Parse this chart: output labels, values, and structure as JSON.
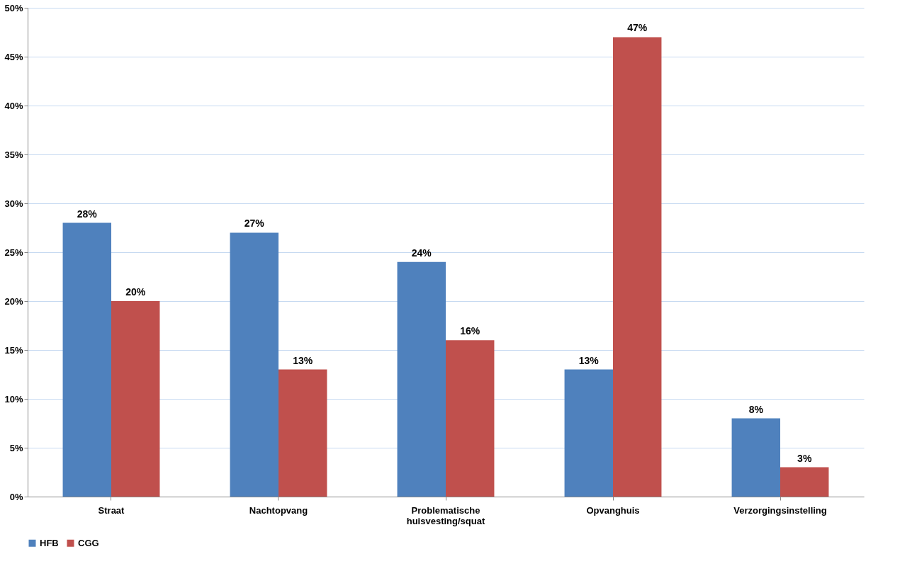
{
  "chart_data": {
    "type": "bar",
    "categories": [
      "Straat",
      "Nachtopvang",
      "Problematische huisvesting/squat",
      "Opvanghuis",
      "Verzorgingsinstelling"
    ],
    "series": [
      {
        "name": "HFB",
        "color": "#4f81bd",
        "values": [
          28,
          27,
          24,
          13,
          8
        ],
        "value_labels": [
          "28%",
          "27%",
          "24%",
          "13%",
          "8%"
        ]
      },
      {
        "name": "CGG",
        "color": "#c0504d",
        "values": [
          20,
          13,
          16,
          47,
          3
        ],
        "value_labels": [
          "20%",
          "13%",
          "16%",
          "47%",
          "3%"
        ]
      }
    ],
    "ylim": [
      0,
      50
    ],
    "yticks": [
      {
        "value": 0,
        "label": "0%"
      },
      {
        "value": 5,
        "label": "5%"
      },
      {
        "value": 10,
        "label": "10%"
      },
      {
        "value": 15,
        "label": "15%"
      },
      {
        "value": 20,
        "label": "20%"
      },
      {
        "value": 25,
        "label": "25%"
      },
      {
        "value": 30,
        "label": "30%"
      },
      {
        "value": 35,
        "label": "35%"
      },
      {
        "value": 40,
        "label": "40%"
      },
      {
        "value": 45,
        "label": "45%"
      },
      {
        "value": 50,
        "label": "50%"
      }
    ],
    "grid": "y",
    "legend": "bottom"
  }
}
